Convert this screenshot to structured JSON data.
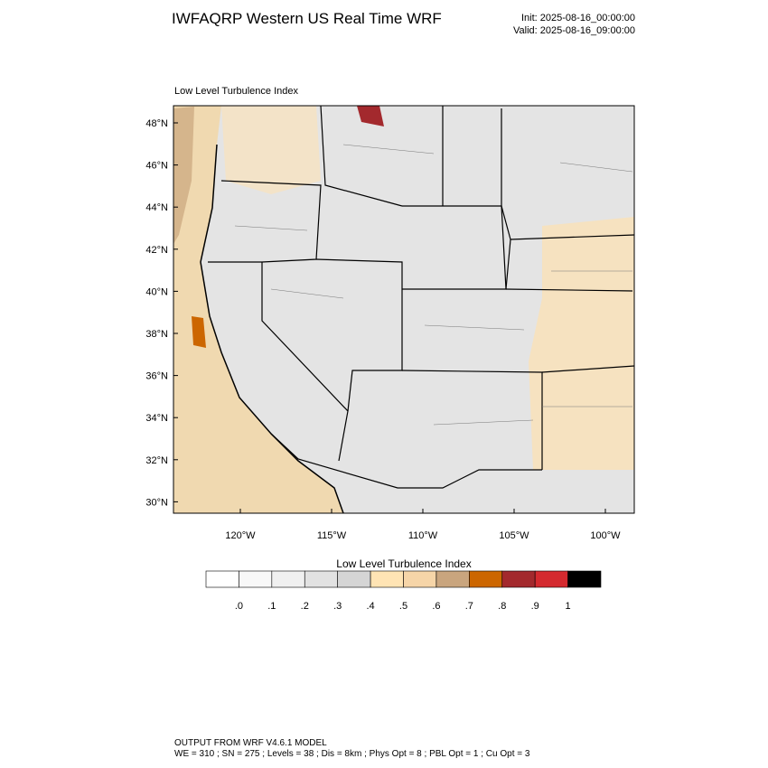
{
  "header": {
    "title": "IWFAQRP Western US Real Time WRF",
    "init": "Init: 2025-08-16_00:00:00",
    "valid": "Valid: 2025-08-16_09:00:00"
  },
  "map": {
    "title": "Low Level Turbulence Index",
    "lat_labels": [
      "48°N",
      "46°N",
      "44°N",
      "42°N",
      "40°N",
      "38°N",
      "36°N",
      "34°N",
      "32°N",
      "30°N"
    ],
    "lon_labels": [
      "120°W",
      "115°W",
      "110°W",
      "105°W",
      "100°W"
    ]
  },
  "colorbar": {
    "title": "Low Level Turbulence Index",
    "colors": [
      "#ffffff",
      "#f8f8f8",
      "#f0f0f0",
      "#e2e2e2",
      "#d5d5d5",
      "#ffe4b4",
      "#f6d5a8",
      "#c9a57e",
      "#cc6600",
      "#a3292d",
      "#d42a2f",
      "#000000"
    ],
    "labels": [
      ".0",
      ".1",
      ".2",
      ".3",
      ".4",
      ".5",
      ".6",
      ".7",
      ".8",
      ".9",
      "1"
    ]
  },
  "footer": {
    "line1": "OUTPUT FROM WRF V4.6.1 MODEL",
    "line2": "WE = 310 ; SN = 275 ; Levels = 38 ; Dis = 8km ; Phys Opt = 8 ; PBL Opt = 1 ; Cu Opt = 3"
  }
}
